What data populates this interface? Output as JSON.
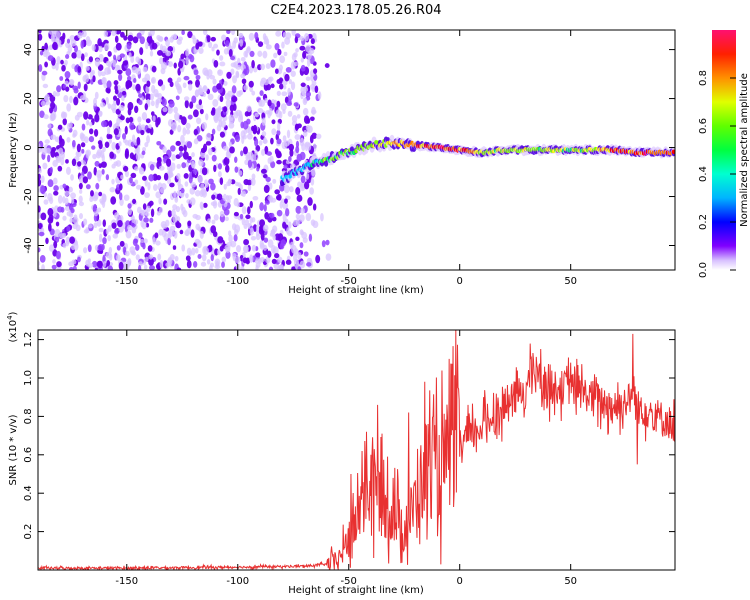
{
  "title": "C2E4.2023.178.05.26.R04",
  "chart_data": [
    {
      "type": "heatmap",
      "xlabel": "Height of straight line (km)",
      "ylabel": "Frequency (Hz)",
      "xlim": [
        -190,
        97
      ],
      "ylim": [
        -50,
        48
      ],
      "x_ticks": [
        -150,
        -100,
        -50,
        0,
        50
      ],
      "x_tick_labels": [
        "-150",
        "-100",
        "-50",
        "0",
        "50"
      ],
      "y_ticks": [
        -40,
        -20,
        0,
        20,
        40
      ],
      "y_tick_labels": [
        "-40",
        "-20",
        "0",
        "20",
        "40"
      ],
      "grid": false,
      "colorbar": {
        "label": "Normalized spectral amplitude",
        "range": [
          0,
          1
        ],
        "ticks": [
          0,
          0.2,
          0.4,
          0.6,
          0.8
        ],
        "tick_labels": [
          "0.0",
          "0.2",
          "0.4",
          "0.6",
          "0.8"
        ],
        "colormap": [
          "#e8d8ff",
          "#6a00e8",
          "#0000ff",
          "#00c8ff",
          "#00ff66",
          "#80ff00",
          "#ffff00",
          "#ff8000",
          "#ff0000",
          "#ff0070"
        ]
      },
      "noise_region_x": [
        -190,
        -65
      ],
      "trace": {
        "x": [
          -80,
          -70,
          -60,
          -50,
          -40,
          -30,
          -20,
          -10,
          0,
          10,
          20,
          30,
          40,
          50,
          60,
          70,
          80,
          90,
          97
        ],
        "y": [
          -13,
          -8,
          -5,
          -2,
          1,
          2,
          1,
          0,
          -1,
          -2,
          -1,
          -1,
          -1,
          -1,
          -1,
          -1,
          -2,
          -2,
          -2
        ],
        "amplitude": [
          0.3,
          0.35,
          0.5,
          0.55,
          0.6,
          0.75,
          0.85,
          0.9,
          0.9,
          0.6,
          0.6,
          0.65,
          0.6,
          0.6,
          0.6,
          0.85,
          0.9,
          0.85,
          0.85
        ]
      }
    },
    {
      "type": "line",
      "xlabel": "Height of straight line (km)",
      "ylabel": "SNR (10 * v/v)",
      "y_scale_label": "(x10",
      "y_scale_exp": "4",
      "xlim": [
        -190,
        97
      ],
      "ylim": [
        0,
        1.25
      ],
      "x_ticks": [
        -150,
        -100,
        -50,
        0,
        50
      ],
      "x_tick_labels": [
        "-150",
        "-100",
        "-50",
        "0",
        "50"
      ],
      "y_ticks": [
        0.2,
        0.4,
        0.6,
        0.8,
        1.0,
        1.2
      ],
      "y_tick_labels": [
        "0.2",
        "0.4",
        "0.6",
        "0.8",
        "1.0",
        "1.2"
      ],
      "grid": false,
      "color": "#e83030",
      "series": [
        {
          "x": [
            -190,
            -150,
            -100,
            -70,
            -60,
            -55,
            -50,
            -45,
            -40,
            -35,
            -30,
            -25,
            -20,
            -15,
            -10,
            -5,
            0,
            10,
            20,
            30,
            33,
            40,
            50,
            60,
            70,
            78,
            80,
            90,
            97
          ],
          "y": [
            0.01,
            0.01,
            0.015,
            0.02,
            0.03,
            0.05,
            0.15,
            0.3,
            0.45,
            0.35,
            0.3,
            0.2,
            0.35,
            0.55,
            0.5,
            0.6,
            0.65,
            0.75,
            0.85,
            0.95,
            1.05,
            0.95,
            0.95,
            0.9,
            0.85,
            0.9,
            0.85,
            0.8,
            0.75
          ],
          "peaks": [
            {
              "x": -49,
              "y": 0.5
            },
            {
              "x": -44,
              "y": 0.62
            },
            {
              "x": -42,
              "y": 0.72
            },
            {
              "x": -37,
              "y": 0.86
            },
            {
              "x": -30,
              "y": 0.48
            },
            {
              "x": -23,
              "y": 0.82
            },
            {
              "x": -15,
              "y": 0.75
            },
            {
              "x": -12,
              "y": 0.8
            },
            {
              "x": 33,
              "y": 1.13
            },
            {
              "x": 50,
              "y": 1.08
            },
            {
              "x": 78,
              "y": 1.23
            },
            {
              "x": 80,
              "y": 0.55
            }
          ]
        }
      ]
    }
  ]
}
